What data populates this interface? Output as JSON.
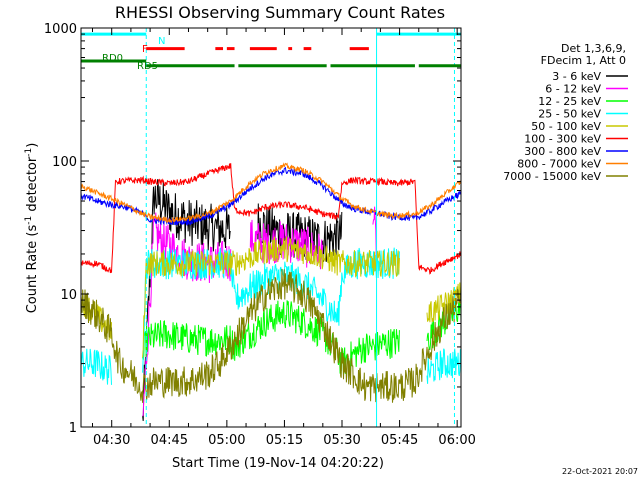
{
  "chart_data": {
    "type": "line",
    "title": "RHESSI Observing Summary Count Rates",
    "xlabel": "Start Time (19-Nov-14 04:20:22)",
    "ylabel": "Count Rate (s⁻¹ detector⁻¹)",
    "ylabel_main": "Count Rate (s",
    "ylabel_sup1": "-1",
    "ylabel_mid": " detector",
    "ylabel_sup2": "-1",
    "ylabel_end": ")",
    "x_range_minutes": [
      262,
      361
    ],
    "y_range": [
      1,
      1000
    ],
    "y_scale": "log",
    "x_ticks": [
      {
        "t": 270,
        "label": "04:30"
      },
      {
        "t": 285,
        "label": "04:45"
      },
      {
        "t": 300,
        "label": "05:00"
      },
      {
        "t": 315,
        "label": "05:15"
      },
      {
        "t": 330,
        "label": "05:30"
      },
      {
        "t": 345,
        "label": "05:45"
      },
      {
        "t": 360,
        "label": "06:00"
      }
    ],
    "y_ticks": [
      {
        "v": 1,
        "label": "1"
      },
      {
        "v": 10,
        "label": "10"
      },
      {
        "v": 100,
        "label": "100"
      },
      {
        "v": 1000,
        "label": "1000"
      }
    ],
    "legend_header": [
      "Det 1,3,6,9,",
      "FDecim 1, Att 0"
    ],
    "timestamp": "22-Oct-2021 20:07",
    "series": [
      {
        "name": "3 - 6 keV",
        "color": "#000000",
        "t": [
          262,
          270,
          271,
          276,
          278,
          281,
          285,
          290,
          295,
          301,
          302,
          308,
          312,
          316,
          320,
          325,
          330,
          332,
          336,
          339,
          340,
          342,
          345,
          350,
          356,
          361
        ],
        "values": [
          null,
          null,
          null,
          null,
          1,
          55,
          42,
          35,
          32,
          30,
          null,
          35,
          30,
          28,
          27,
          25,
          28,
          null,
          null,
          1,
          null,
          null,
          null,
          null,
          null,
          null
        ]
      },
      {
        "name": "6 - 12 keV",
        "color": "#ff00ff",
        "t": [
          262,
          270,
          271,
          278,
          281,
          283,
          286,
          290,
          295,
          301,
          302,
          306,
          310,
          315,
          320,
          325,
          329,
          332,
          336,
          338,
          339,
          340,
          342,
          345,
          361
        ],
        "values": [
          null,
          null,
          null,
          1,
          30,
          25,
          22,
          18,
          17,
          18,
          null,
          26,
          24,
          25,
          23,
          20,
          null,
          null,
          null,
          50,
          20,
          null,
          null,
          null,
          null
        ]
      },
      {
        "name": "12 - 25 keV",
        "color": "#00ff00",
        "t": [
          262,
          270,
          271,
          278,
          279,
          284,
          288,
          293,
          297,
          301,
          302,
          306,
          310,
          315,
          320,
          325,
          329,
          330,
          333,
          336,
          339,
          340,
          343,
          345,
          349,
          352,
          356,
          361
        ],
        "values": [
          null,
          null,
          null,
          3,
          4.5,
          5,
          4.7,
          4.5,
          4.5,
          4.6,
          4,
          5,
          6.2,
          7.2,
          6.2,
          5,
          3.5,
          3,
          3.5,
          4,
          4,
          4.2,
          4.3,
          4.4,
          null,
          4.5,
          6,
          8
        ]
      },
      {
        "name": "25 - 50 keV",
        "color": "#00ffff",
        "t": [
          262,
          266,
          270,
          271,
          278,
          279,
          284,
          290,
          295,
          301,
          302,
          306,
          310,
          315,
          320,
          325,
          329,
          330,
          333,
          336,
          339,
          340,
          343,
          345,
          349,
          352,
          356,
          361
        ],
        "values": [
          3,
          3,
          2.6,
          null,
          3,
          17,
          17,
          17,
          17,
          17,
          9,
          11,
          13,
          14,
          12,
          9,
          6.5,
          14,
          17,
          17,
          17,
          17,
          17,
          17,
          null,
          2.5,
          3,
          3
        ]
      },
      {
        "name": "50 - 100 keV",
        "color": "#c8c800",
        "t": [
          262,
          266,
          270,
          271,
          278,
          279,
          284,
          290,
          295,
          301,
          302,
          306,
          310,
          315,
          320,
          325,
          329,
          330,
          333,
          336,
          339,
          340,
          343,
          345,
          349,
          352,
          356,
          361
        ],
        "values": [
          9,
          7,
          5,
          null,
          3,
          17,
          17,
          17,
          17,
          17,
          17,
          19,
          21,
          22,
          21,
          19,
          17,
          17,
          17,
          17,
          17,
          17,
          17,
          17,
          null,
          7,
          8,
          10
        ]
      },
      {
        "name": "100 - 300 keV",
        "color": "#ff0000",
        "t": [
          262,
          266,
          270,
          271,
          274,
          278,
          280,
          285,
          290,
          295,
          301,
          302,
          306,
          310,
          315,
          320,
          325,
          329,
          330,
          333,
          336,
          339,
          340,
          343,
          345,
          349,
          350,
          353,
          356,
          361
        ],
        "values": [
          17,
          17,
          15,
          70,
          71,
          72,
          70,
          68,
          70,
          80,
          92,
          43,
          40,
          45,
          47,
          45,
          40,
          38,
          68,
          72,
          70,
          70,
          70,
          68,
          68,
          70,
          16,
          15,
          17,
          20
        ]
      },
      {
        "name": "300 - 800 keV",
        "color": "#0000ff",
        "t": [
          262,
          266,
          270,
          274,
          278,
          280,
          285,
          290,
          295,
          301,
          306,
          310,
          315,
          320,
          325,
          330,
          333,
          336,
          340,
          343,
          345,
          349,
          353,
          356,
          361
        ],
        "values": [
          55,
          50,
          47,
          45,
          40,
          36,
          35,
          35,
          38,
          47,
          62,
          75,
          85,
          80,
          65,
          48,
          44,
          42,
          40,
          38,
          38,
          37,
          42,
          48,
          57
        ]
      },
      {
        "name": "800 - 7000 keV",
        "color": "#ff7f00",
        "t": [
          262,
          266,
          270,
          274,
          278,
          280,
          285,
          290,
          295,
          301,
          306,
          310,
          315,
          320,
          325,
          330,
          333,
          336,
          340,
          343,
          345,
          349,
          353,
          356,
          361
        ],
        "values": [
          65,
          58,
          52,
          46,
          40,
          38,
          36,
          37,
          40,
          50,
          68,
          82,
          92,
          85,
          70,
          52,
          46,
          43,
          40,
          39,
          39,
          40,
          46,
          54,
          70
        ]
      },
      {
        "name": "7000 - 15000 keV",
        "color": "#808000",
        "t": [
          262,
          266,
          270,
          272,
          275,
          278,
          281,
          285,
          290,
          295,
          298,
          301,
          306,
          310,
          315,
          320,
          325,
          330,
          333,
          336,
          340,
          343,
          345,
          349,
          353,
          356,
          361
        ],
        "values": [
          9,
          7,
          5,
          3,
          2.5,
          2,
          2.2,
          2.2,
          2.2,
          2.5,
          3,
          4,
          7,
          10,
          12,
          10,
          6,
          3,
          2.5,
          2,
          2,
          2,
          2,
          2.2,
          4,
          6,
          9
        ]
      }
    ],
    "flag_annotations": [
      {
        "label": "N",
        "color": "#00ffff"
      },
      {
        "label": "F",
        "color": "#ff0000"
      },
      {
        "label": "RD0",
        "color": "#008000"
      },
      {
        "label": "RD5",
        "color": "#008000"
      }
    ],
    "flags": [
      {
        "name": "N",
        "color": "#00ffff",
        "level": 900,
        "intervals": [
          [
            262,
            279
          ],
          [
            339,
            361
          ]
        ]
      },
      {
        "name": "F",
        "color": "#ff0000",
        "level": 700,
        "intervals": [
          [
            279,
            289
          ],
          [
            297,
            299
          ],
          [
            300,
            302
          ],
          [
            306,
            313
          ],
          [
            316,
            317
          ],
          [
            320,
            322
          ],
          [
            332,
            337
          ]
        ]
      },
      {
        "name": "RD0",
        "color": "#008000",
        "level": 565,
        "intervals": [
          [
            262,
            279
          ]
        ]
      },
      {
        "name": "RD5",
        "color": "#008000",
        "level": 520,
        "intervals": [
          [
            279,
            302
          ],
          [
            303,
            326
          ],
          [
            327,
            349
          ],
          [
            350,
            361
          ]
        ]
      }
    ],
    "vlines": [
      {
        "t": 279,
        "color": "#00ffff",
        "style": "dashed"
      },
      {
        "t": 339,
        "color": "#00ffff",
        "style": "solid"
      },
      {
        "t": 359.3,
        "color": "#00ffff",
        "style": "dashed"
      }
    ],
    "grid": false
  }
}
